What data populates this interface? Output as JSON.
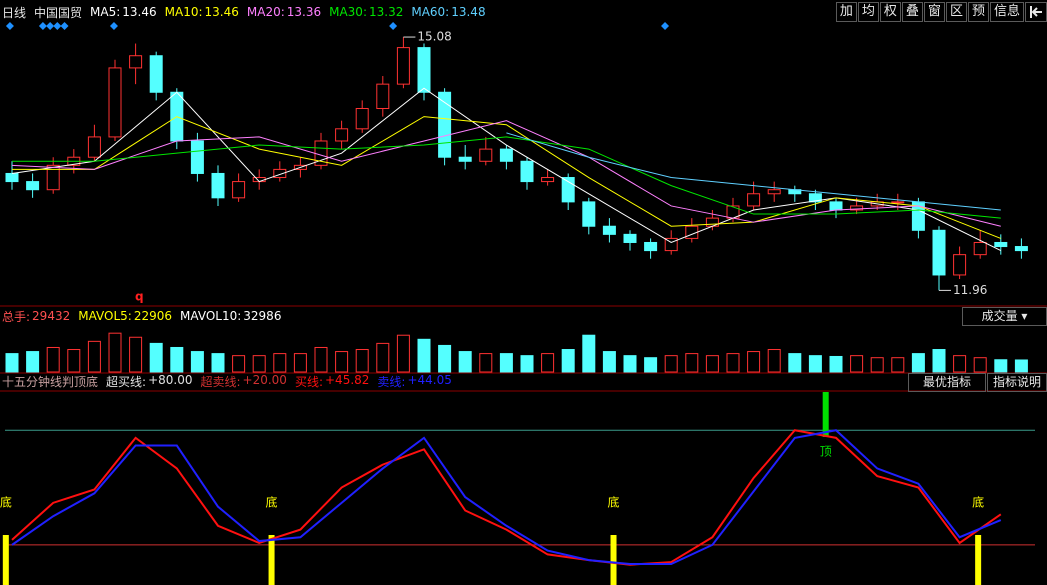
{
  "toolbar": [
    "加",
    "均",
    "权",
    "叠",
    "窗",
    "区",
    "预",
    "信息"
  ],
  "volume_selector": "成交量",
  "indicator_buttons": [
    "最优指标",
    "指标说明"
  ],
  "chart_data": [
    {
      "type": "candlestick",
      "period": "日线",
      "title": "中国国贸",
      "up_color": "#ff3232",
      "down_color": "#54ffff",
      "ylim": [
        11.78,
        15.29
      ],
      "grid": false,
      "note": "q",
      "ohlc": [
        [
          13.4,
          13.55,
          13.2,
          13.3
        ],
        [
          13.3,
          13.4,
          13.1,
          13.2
        ],
        [
          13.2,
          13.6,
          13.15,
          13.5
        ],
        [
          13.5,
          13.7,
          13.4,
          13.6
        ],
        [
          13.6,
          14.0,
          13.55,
          13.85
        ],
        [
          13.85,
          14.8,
          13.8,
          14.7
        ],
        [
          14.7,
          15.0,
          14.5,
          14.85
        ],
        [
          14.85,
          14.9,
          14.3,
          14.4
        ],
        [
          14.4,
          14.45,
          13.7,
          13.8
        ],
        [
          13.8,
          13.9,
          13.3,
          13.4
        ],
        [
          13.4,
          13.5,
          13.0,
          13.1
        ],
        [
          13.1,
          13.4,
          13.05,
          13.3
        ],
        [
          13.3,
          13.45,
          13.2,
          13.35
        ],
        [
          13.35,
          13.55,
          13.3,
          13.45
        ],
        [
          13.45,
          13.6,
          13.35,
          13.5
        ],
        [
          13.5,
          13.9,
          13.45,
          13.8
        ],
        [
          13.8,
          14.05,
          13.7,
          13.95
        ],
        [
          13.95,
          14.3,
          13.9,
          14.2
        ],
        [
          14.2,
          14.6,
          14.1,
          14.5
        ],
        [
          14.5,
          15.08,
          14.45,
          14.95
        ],
        [
          14.95,
          15.0,
          14.3,
          14.4
        ],
        [
          14.4,
          14.45,
          13.5,
          13.6
        ],
        [
          13.6,
          13.75,
          13.45,
          13.55
        ],
        [
          13.55,
          13.85,
          13.5,
          13.7
        ],
        [
          13.7,
          13.75,
          13.45,
          13.55
        ],
        [
          13.55,
          13.6,
          13.2,
          13.3
        ],
        [
          13.3,
          13.45,
          13.25,
          13.35
        ],
        [
          13.35,
          13.4,
          12.95,
          13.05
        ],
        [
          13.05,
          13.1,
          12.65,
          12.75
        ],
        [
          12.75,
          12.85,
          12.55,
          12.65
        ],
        [
          12.65,
          12.7,
          12.45,
          12.55
        ],
        [
          12.55,
          12.6,
          12.35,
          12.45
        ],
        [
          12.45,
          12.7,
          12.4,
          12.6
        ],
        [
          12.6,
          12.85,
          12.55,
          12.75
        ],
        [
          12.75,
          12.95,
          12.7,
          12.85
        ],
        [
          12.85,
          13.1,
          12.8,
          13.0
        ],
        [
          13.0,
          13.3,
          12.95,
          13.15
        ],
        [
          13.15,
          13.3,
          13.05,
          13.2
        ],
        [
          13.2,
          13.25,
          13.05,
          13.15
        ],
        [
          13.15,
          13.2,
          12.95,
          13.05
        ],
        [
          13.05,
          13.1,
          12.85,
          12.95
        ],
        [
          12.95,
          13.1,
          12.9,
          13.0
        ],
        [
          13.0,
          13.15,
          12.95,
          13.05
        ],
        [
          13.05,
          13.15,
          12.95,
          13.05
        ],
        [
          13.05,
          13.1,
          12.6,
          12.7
        ],
        [
          12.7,
          12.75,
          11.96,
          12.15
        ],
        [
          12.15,
          12.5,
          12.1,
          12.4
        ],
        [
          12.4,
          12.7,
          12.35,
          12.55
        ],
        [
          12.55,
          12.65,
          12.4,
          12.5
        ],
        [
          12.5,
          12.6,
          12.35,
          12.45
        ]
      ],
      "ma_x": [
        0,
        4,
        8,
        12,
        16,
        20,
        24,
        28,
        32,
        36,
        40,
        44,
        48
      ],
      "series": [
        {
          "name": "MA5:",
          "current": 13.46,
          "color": "#ffffff",
          "values": [
            13.4,
            13.55,
            14.4,
            13.3,
            13.65,
            14.45,
            13.75,
            13.15,
            12.55,
            12.95,
            13.1,
            12.95,
            12.45
          ]
        },
        {
          "name": "MA10:",
          "current": 13.46,
          "color": "#ffff00",
          "values": [
            13.45,
            13.45,
            14.1,
            13.7,
            13.5,
            14.1,
            14.0,
            13.35,
            12.75,
            12.8,
            13.1,
            13.0,
            12.6
          ]
        },
        {
          "name": "MA20:",
          "current": 13.36,
          "color": "#ff80ff",
          "values": [
            13.5,
            13.45,
            13.8,
            13.85,
            13.55,
            13.8,
            14.05,
            13.6,
            13.0,
            12.8,
            12.95,
            13.0,
            12.75
          ]
        },
        {
          "name": "MA30:",
          "current": 13.32,
          "color": "#00e600",
          "values": [
            13.55,
            13.55,
            13.65,
            13.75,
            13.7,
            13.75,
            13.85,
            13.7,
            13.25,
            12.9,
            12.9,
            12.95,
            12.85
          ]
        },
        {
          "name": "MA60:",
          "current": 13.48,
          "color": "#5fd0ff",
          "values": [
            null,
            null,
            null,
            null,
            null,
            null,
            13.9,
            13.6,
            13.35,
            13.25,
            13.15,
            13.05,
            12.95
          ]
        }
      ],
      "signal_color": "#1e90ff",
      "signal_x": [
        -0.1,
        1.5,
        1.85,
        2.2,
        2.55,
        4.95,
        18.5,
        31.7
      ]
    },
    {
      "type": "bar",
      "ylim": [
        0,
        115000
      ],
      "series": [
        {
          "name": "总手:",
          "color": "#ff5050",
          "values": [
            45000,
            50000,
            60000,
            55000,
            75000,
            95000,
            85000,
            70000,
            60000,
            50000,
            45000,
            40000,
            40000,
            45000,
            45000,
            60000,
            50000,
            55000,
            70000,
            90000,
            80000,
            65000,
            50000,
            45000,
            45000,
            40000,
            45000,
            55000,
            90000,
            50000,
            40000,
            35000,
            40000,
            45000,
            40000,
            45000,
            50000,
            55000,
            45000,
            40000,
            38000,
            40000,
            35000,
            35000,
            45000,
            55000,
            40000,
            35000,
            30000,
            29432
          ]
        }
      ],
      "indicators": [
        {
          "name": "MAVOL5:",
          "value": 22906,
          "color": "#ffff00"
        },
        {
          "name": "MAVOL10:",
          "value": 32986,
          "color": "#ffffff"
        }
      ]
    },
    {
      "type": "line",
      "title": "十五分钟线判顶底",
      "ylim": [
        -1,
        100
      ],
      "levels": [
        {
          "name": "超买线:",
          "value": 80,
          "label": "+80.00",
          "color": "#3a9a8a"
        },
        {
          "name": "超卖线:",
          "value": 20,
          "label": "+20.00",
          "color": "#d03030"
        }
      ],
      "x": [
        0,
        2,
        4,
        6,
        8,
        10,
        12,
        14,
        16,
        18,
        20,
        22,
        24,
        26,
        28,
        30,
        32,
        34,
        36,
        38,
        40,
        42,
        44,
        46,
        48
      ],
      "series": [
        {
          "name": "买线:",
          "color": "#ff1010",
          "current": {
            "value": 45.82,
            "label": "+45.82"
          },
          "values": [
            22.6,
            42,
            49,
            76,
            60,
            30,
            21,
            28,
            50,
            62,
            70,
            38,
            28,
            15,
            12,
            9.6,
            11,
            24,
            55,
            80,
            76,
            56,
            50,
            21,
            36
          ]
        },
        {
          "name": "卖线:",
          "color": "#2020ff",
          "current": {
            "value": 44.05,
            "label": "+44.05"
          },
          "values": [
            20,
            35,
            47,
            72,
            72,
            40,
            22,
            24,
            42,
            60,
            76,
            45,
            30,
            17,
            12,
            10,
            10,
            20,
            48,
            76,
            80,
            60,
            52,
            24,
            33
          ]
        }
      ],
      "signals": [
        {
          "label": "底",
          "color": "#ffff00",
          "x": [
            -0.3,
            12.6,
            29.2,
            46.9
          ]
        },
        {
          "label": "顶",
          "color": "#00e000",
          "x": [
            39.5
          ]
        }
      ]
    }
  ]
}
